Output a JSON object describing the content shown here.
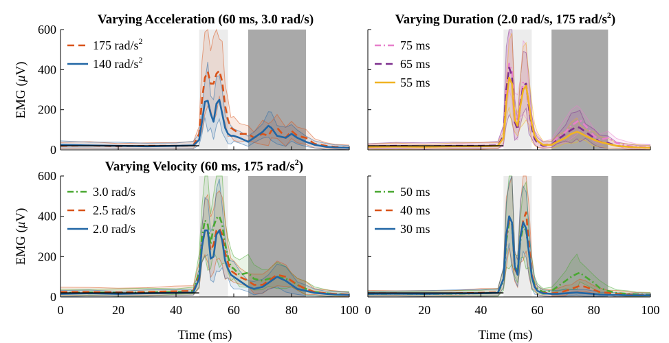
{
  "colors": {
    "blue": "#2166a5",
    "orange": "#d95319",
    "green": "#4aa832",
    "purple": "#7e2f8e",
    "pink": "#e77fcb",
    "yellow": "#f0b323",
    "light_window": "#ececec",
    "dark_window": "#a9a9a9"
  },
  "chart_data": [
    {
      "type": "line",
      "title": "Varying Acceleration (60 ms, 3.0 rad/s)",
      "title_super": "",
      "ylabel": "EMG (μV)",
      "xlabel": "",
      "xlim": [
        0,
        100
      ],
      "ylim": [
        0,
        600
      ],
      "yticks": [
        "0",
        "200",
        "400",
        "600"
      ],
      "xticks": [],
      "shaded_windows": [
        {
          "x": [
            48,
            58
          ],
          "shade": "light"
        },
        {
          "x": [
            65,
            85
          ],
          "shade": "dark"
        }
      ],
      "legend_position": "top-left",
      "series": [
        {
          "name": "175 rad/s",
          "name_super": "2",
          "color": "orange",
          "dash": "dash",
          "x": [
            0,
            10,
            20,
            30,
            40,
            46,
            48,
            49,
            50,
            51,
            52,
            53,
            54,
            55,
            56,
            57,
            58,
            59,
            60,
            62,
            65,
            67,
            70,
            72,
            73,
            75,
            78,
            80,
            82,
            85,
            88,
            92,
            95,
            100
          ],
          "y": [
            20,
            22,
            18,
            20,
            20,
            22,
            80,
            250,
            360,
            390,
            330,
            330,
            380,
            395,
            340,
            220,
            150,
            110,
            100,
            80,
            80,
            60,
            80,
            70,
            95,
            110,
            60,
            95,
            70,
            60,
            30,
            20,
            15,
            10
          ]
        },
        {
          "name": "140 rad/s",
          "name_super": "2",
          "color": "blue",
          "dash": "solid",
          "x": [
            0,
            10,
            20,
            30,
            40,
            46,
            48,
            49,
            50,
            51,
            52,
            53,
            54,
            55,
            56,
            57,
            58,
            59,
            60,
            62,
            65,
            67,
            70,
            72,
            73,
            75,
            78,
            80,
            82,
            85,
            88,
            92,
            95,
            100
          ],
          "y": [
            25,
            22,
            20,
            18,
            20,
            22,
            50,
            140,
            240,
            245,
            180,
            140,
            230,
            250,
            180,
            110,
            80,
            70,
            70,
            60,
            40,
            60,
            90,
            120,
            110,
            70,
            60,
            80,
            60,
            40,
            25,
            15,
            12,
            10
          ]
        }
      ]
    },
    {
      "type": "line",
      "title": "Varying Duration (2.0 rad/s, 175 rad/s",
      "title_super": "2",
      "title_after": ")",
      "ylabel": "",
      "xlabel": "",
      "xlim": [
        0,
        100
      ],
      "ylim": [
        0,
        600
      ],
      "yticks": [],
      "xticks": [],
      "shaded_windows": [
        {
          "x": [
            48,
            58
          ],
          "shade": "light"
        },
        {
          "x": [
            65,
            85
          ],
          "shade": "dark"
        }
      ],
      "legend_position": "top-left",
      "series": [
        {
          "name": "75 ms",
          "color": "pink",
          "dash": "dashdot",
          "x": [
            0,
            10,
            20,
            30,
            40,
            46,
            48,
            49,
            50,
            51,
            52,
            53,
            54,
            55,
            56,
            57,
            58,
            59,
            60,
            62,
            65,
            67,
            70,
            72,
            74,
            75,
            77,
            80,
            82,
            85,
            88,
            92,
            95,
            100
          ],
          "y": [
            15,
            18,
            15,
            18,
            18,
            20,
            60,
            280,
            430,
            390,
            160,
            150,
            250,
            340,
            320,
            200,
            110,
            60,
            40,
            25,
            30,
            60,
            90,
            120,
            140,
            150,
            120,
            70,
            50,
            60,
            35,
            20,
            15,
            12
          ]
        },
        {
          "name": "65 ms",
          "color": "purple",
          "dash": "dash",
          "x": [
            0,
            10,
            20,
            30,
            40,
            46,
            48,
            49,
            50,
            51,
            52,
            53,
            54,
            55,
            56,
            57,
            58,
            59,
            60,
            62,
            65,
            67,
            70,
            72,
            74,
            75,
            77,
            80,
            82,
            85,
            88,
            92,
            95,
            100
          ],
          "y": [
            18,
            20,
            18,
            20,
            20,
            22,
            70,
            300,
            410,
            370,
            140,
            100,
            230,
            320,
            330,
            210,
            110,
            55,
            35,
            20,
            25,
            50,
            80,
            100,
            115,
            110,
            90,
            60,
            40,
            35,
            20,
            15,
            12,
            10
          ]
        },
        {
          "name": "55 ms",
          "color": "yellow",
          "dash": "solid",
          "x": [
            0,
            10,
            20,
            30,
            40,
            46,
            48,
            49,
            50,
            51,
            52,
            53,
            54,
            55,
            56,
            57,
            58,
            59,
            60,
            62,
            65,
            67,
            70,
            72,
            74,
            75,
            77,
            80,
            82,
            85,
            88,
            92,
            95,
            100
          ],
          "y": [
            15,
            16,
            15,
            17,
            18,
            20,
            60,
            240,
            360,
            330,
            150,
            120,
            220,
            300,
            320,
            230,
            130,
            70,
            45,
            25,
            25,
            40,
            60,
            80,
            90,
            85,
            70,
            50,
            40,
            30,
            20,
            15,
            12,
            10
          ]
        }
      ]
    },
    {
      "type": "line",
      "title": "Varying Velocity (60 ms, 175 rad/s",
      "title_super": "2",
      "title_after": ")",
      "ylabel": "EMG (μV)",
      "xlabel": "Time (ms)",
      "xlim": [
        0,
        100
      ],
      "ylim": [
        0,
        600
      ],
      "yticks": [
        "0",
        "200",
        "400",
        "600"
      ],
      "xticks": [
        "0",
        "20",
        "40",
        "60",
        "80",
        "100"
      ],
      "shaded_windows": [
        {
          "x": [
            48,
            58
          ],
          "shade": "light"
        },
        {
          "x": [
            65,
            85
          ],
          "shade": "dark"
        }
      ],
      "legend_position": "top-left",
      "series": [
        {
          "name": "3.0 rad/s",
          "color": "green",
          "dash": "dashdot",
          "x": [
            0,
            10,
            20,
            30,
            40,
            46,
            48,
            49,
            50,
            51,
            52,
            53,
            54,
            55,
            56,
            57,
            58,
            59,
            60,
            62,
            65,
            67,
            70,
            72,
            75,
            78,
            80,
            82,
            85,
            88,
            92,
            95,
            100
          ],
          "y": [
            20,
            22,
            20,
            22,
            25,
            30,
            120,
            300,
            380,
            360,
            260,
            350,
            390,
            400,
            360,
            260,
            200,
            150,
            140,
            110,
            120,
            90,
            80,
            90,
            100,
            90,
            80,
            60,
            40,
            25,
            18,
            15,
            12
          ]
        },
        {
          "name": "2.5 rad/s",
          "color": "orange",
          "dash": "dash",
          "x": [
            0,
            10,
            20,
            30,
            40,
            46,
            48,
            49,
            50,
            51,
            52,
            53,
            54,
            55,
            56,
            57,
            58,
            59,
            60,
            62,
            65,
            67,
            70,
            72,
            75,
            78,
            80,
            82,
            85,
            88,
            92,
            95,
            100
          ],
          "y": [
            25,
            25,
            22,
            25,
            28,
            30,
            100,
            250,
            330,
            320,
            230,
            260,
            330,
            340,
            310,
            220,
            170,
            130,
            120,
            100,
            80,
            60,
            60,
            80,
            110,
            100,
            80,
            60,
            40,
            25,
            18,
            15,
            12
          ]
        },
        {
          "name": "2.0 rad/s",
          "color": "blue",
          "dash": "solid",
          "x": [
            0,
            10,
            20,
            30,
            40,
            46,
            48,
            49,
            50,
            51,
            52,
            53,
            54,
            55,
            56,
            57,
            58,
            59,
            60,
            62,
            65,
            67,
            70,
            72,
            75,
            78,
            80,
            82,
            85,
            88,
            92,
            95,
            100
          ],
          "y": [
            15,
            18,
            15,
            18,
            20,
            22,
            90,
            250,
            330,
            330,
            190,
            200,
            310,
            330,
            280,
            180,
            140,
            110,
            100,
            80,
            50,
            40,
            50,
            70,
            100,
            80,
            60,
            40,
            30,
            20,
            15,
            12,
            10
          ]
        }
      ]
    },
    {
      "type": "line",
      "title": "",
      "ylabel": "",
      "xlabel": "Time (ms)",
      "xlim": [
        0,
        100
      ],
      "ylim": [
        0,
        600
      ],
      "yticks": [],
      "xticks": [
        "0",
        "20",
        "40",
        "60",
        "80",
        "100"
      ],
      "shaded_windows": [
        {
          "x": [
            48,
            58
          ],
          "shade": "light"
        },
        {
          "x": [
            65,
            85
          ],
          "shade": "dark"
        }
      ],
      "legend_position": "top-left",
      "series": [
        {
          "name": "50 ms",
          "color": "green",
          "dash": "dashdot",
          "x": [
            0,
            10,
            20,
            30,
            40,
            46,
            48,
            49,
            50,
            51,
            52,
            53,
            54,
            55,
            56,
            57,
            58,
            59,
            60,
            62,
            65,
            67,
            70,
            72,
            74,
            75,
            77,
            80,
            82,
            85,
            88,
            92,
            95,
            100
          ],
          "y": [
            15,
            16,
            15,
            16,
            18,
            20,
            80,
            280,
            370,
            360,
            150,
            130,
            280,
            350,
            330,
            220,
            110,
            60,
            40,
            25,
            30,
            50,
            80,
            100,
            115,
            120,
            100,
            70,
            45,
            30,
            20,
            15,
            12,
            10
          ]
        },
        {
          "name": "40 ms",
          "color": "orange",
          "dash": "dash",
          "x": [
            0,
            10,
            20,
            30,
            40,
            46,
            48,
            49,
            50,
            51,
            52,
            53,
            54,
            55,
            56,
            57,
            58,
            59,
            60,
            62,
            65,
            67,
            70,
            72,
            74,
            75,
            77,
            80,
            82,
            85,
            88,
            92,
            95,
            100
          ],
          "y": [
            18,
            18,
            16,
            18,
            20,
            22,
            90,
            300,
            380,
            370,
            140,
            110,
            300,
            380,
            420,
            260,
            110,
            55,
            30,
            20,
            18,
            20,
            30,
            40,
            50,
            55,
            50,
            35,
            25,
            20,
            15,
            12,
            10,
            8
          ]
        },
        {
          "name": "30 ms",
          "color": "blue",
          "dash": "solid",
          "x": [
            0,
            10,
            20,
            30,
            40,
            46,
            48,
            49,
            50,
            51,
            52,
            53,
            54,
            55,
            56,
            57,
            58,
            59,
            60,
            62,
            65,
            67,
            70,
            72,
            74,
            75,
            77,
            80,
            82,
            85,
            88,
            92,
            95,
            100
          ],
          "y": [
            15,
            16,
            15,
            17,
            18,
            20,
            90,
            310,
            400,
            370,
            150,
            110,
            300,
            370,
            340,
            220,
            100,
            50,
            30,
            18,
            15,
            15,
            18,
            20,
            22,
            20,
            18,
            15,
            12,
            10,
            10,
            8,
            8,
            8
          ]
        }
      ]
    }
  ]
}
